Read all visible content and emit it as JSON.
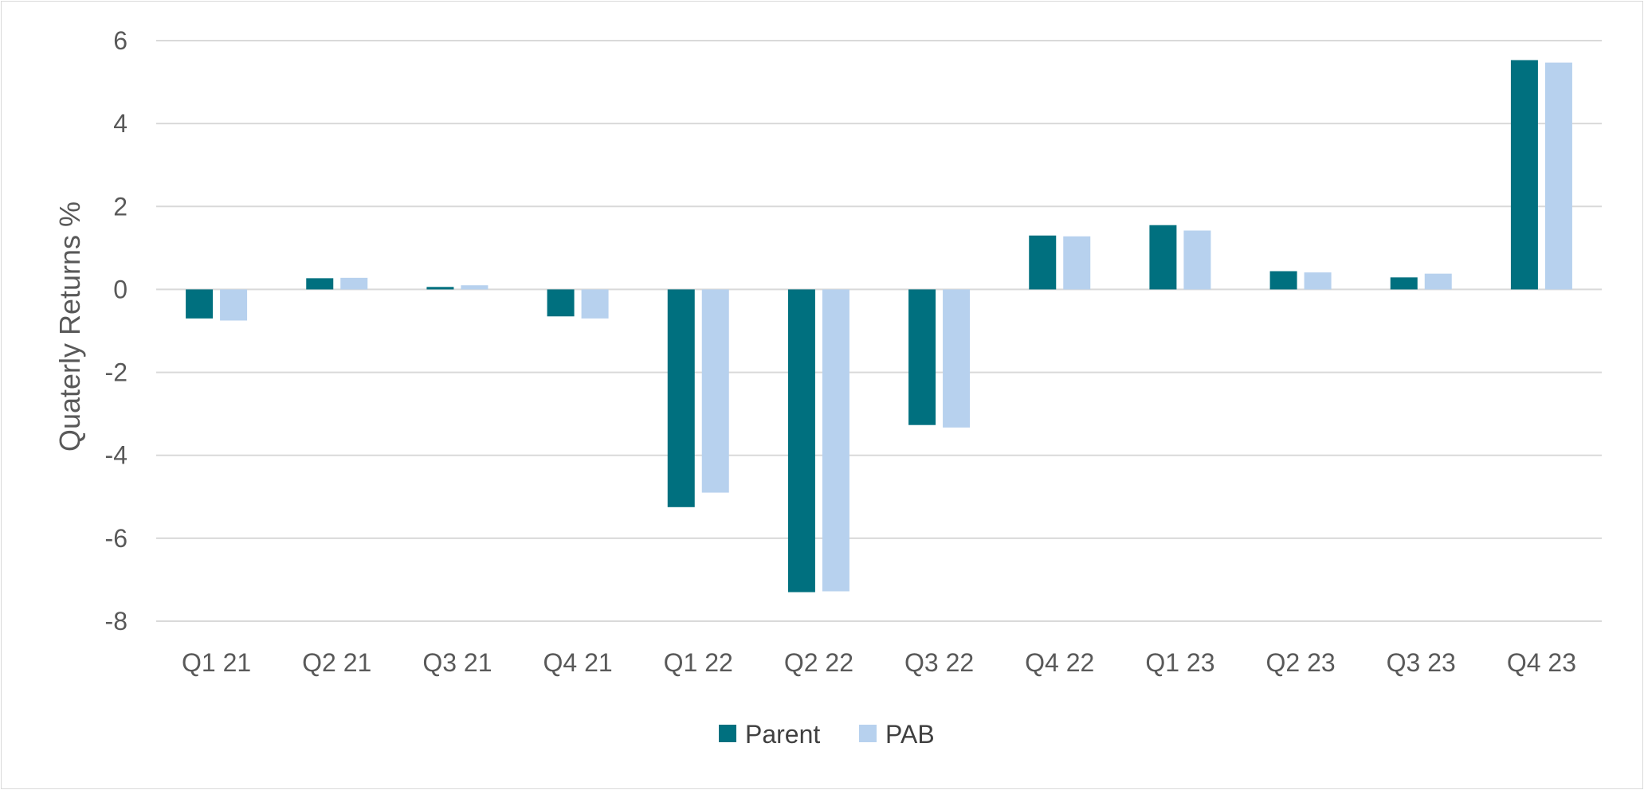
{
  "chart_data": {
    "type": "bar",
    "title": "",
    "xlabel": "",
    "ylabel": "Quaterly Returns %",
    "ylim": [
      -8,
      6
    ],
    "yticks": [
      6,
      4,
      2,
      0,
      -2,
      -4,
      -6,
      -8
    ],
    "grid": true,
    "legend_position": "bottom",
    "categories": [
      "Q1 21",
      "Q2 21",
      "Q3 21",
      "Q4 21",
      "Q1 22",
      "Q2 22",
      "Q3 22",
      "Q4 22",
      "Q1 23",
      "Q2 23",
      "Q3 23",
      "Q4 23"
    ],
    "series": [
      {
        "name": "Parent",
        "color": "#00707F",
        "values": [
          -0.7,
          0.27,
          0.06,
          -0.65,
          -5.25,
          -7.3,
          -3.27,
          1.3,
          1.55,
          0.44,
          0.29,
          5.53
        ]
      },
      {
        "name": "PAB",
        "color": "#B7D1EE",
        "values": [
          -0.75,
          0.28,
          0.1,
          -0.7,
          -4.9,
          -7.28,
          -3.33,
          1.28,
          1.42,
          0.41,
          0.38,
          5.47
        ]
      }
    ]
  }
}
